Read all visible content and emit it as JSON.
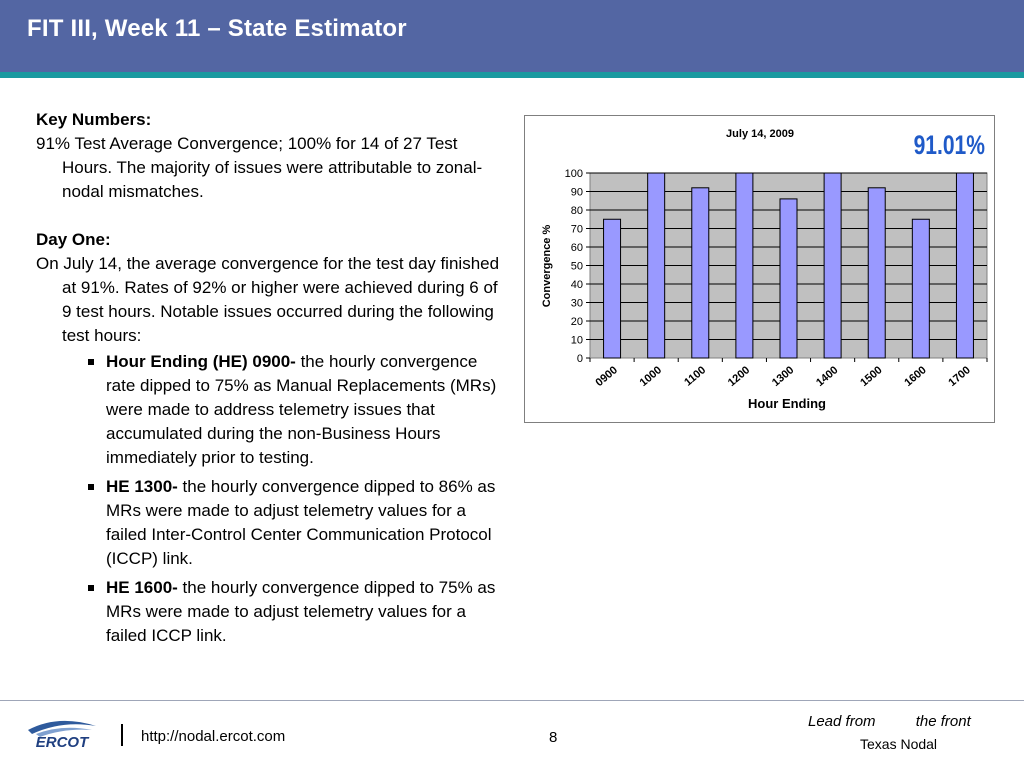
{
  "slide": {
    "title": "FIT III, Week 11 – State Estimator",
    "colors": {
      "header": "#5366a3",
      "header_rule": "#1a9aa0",
      "bar": "#9999ff",
      "plot_bg": "#c0c0c0",
      "percent": "#1f5ac8"
    }
  },
  "content": {
    "key_heading": "Key Numbers:",
    "key_text": "91% Test Average Convergence; 100% for 14 of 27 Test Hours. The majority of issues were attributable to zonal-nodal mismatches.",
    "day_heading": "Day One:",
    "day_text": "On July 14, the average convergence for the test day finished at 91%. Rates of 92% or higher were achieved during 6 of 9 test hours. Notable issues occurred during the following test hours:",
    "bullets": [
      {
        "bold": "Hour Ending (HE) 0900-",
        "text": " the hourly convergence rate dipped to 75% as Manual Replacements (MRs) were made to address telemetry issues that accumulated during the non-Business Hours immediately prior to testing."
      },
      {
        "bold": "HE 1300-",
        "text": " the hourly convergence dipped to 86% as MRs were made to adjust telemetry values for a failed Inter-Control Center Communication Protocol (ICCP) link."
      },
      {
        "bold": "HE 1600-",
        "text": " the hourly convergence dipped to 75% as MRs were made to adjust telemetry values for a failed ICCP link."
      }
    ]
  },
  "chart_data": {
    "type": "bar",
    "title": "July 14, 2009",
    "annotation": "91.01%",
    "categories": [
      "0900",
      "1000",
      "1100",
      "1200",
      "1300",
      "1400",
      "1500",
      "1600",
      "1700"
    ],
    "values": [
      75,
      100,
      92,
      100,
      86,
      100,
      92,
      75,
      100
    ],
    "xlabel": "Hour Ending",
    "ylabel": "Convergence %",
    "ylim": [
      0,
      100
    ],
    "yticks": [
      0,
      10,
      20,
      30,
      40,
      50,
      60,
      70,
      80,
      90,
      100
    ],
    "grid": true
  },
  "footer": {
    "logo_text": "ERCOT",
    "url": "http://nodal.ercot.com",
    "page_number": "8",
    "tagline_1a": "Lead from",
    "tagline_1b": "the front",
    "tagline_2": "Texas Nodal"
  }
}
